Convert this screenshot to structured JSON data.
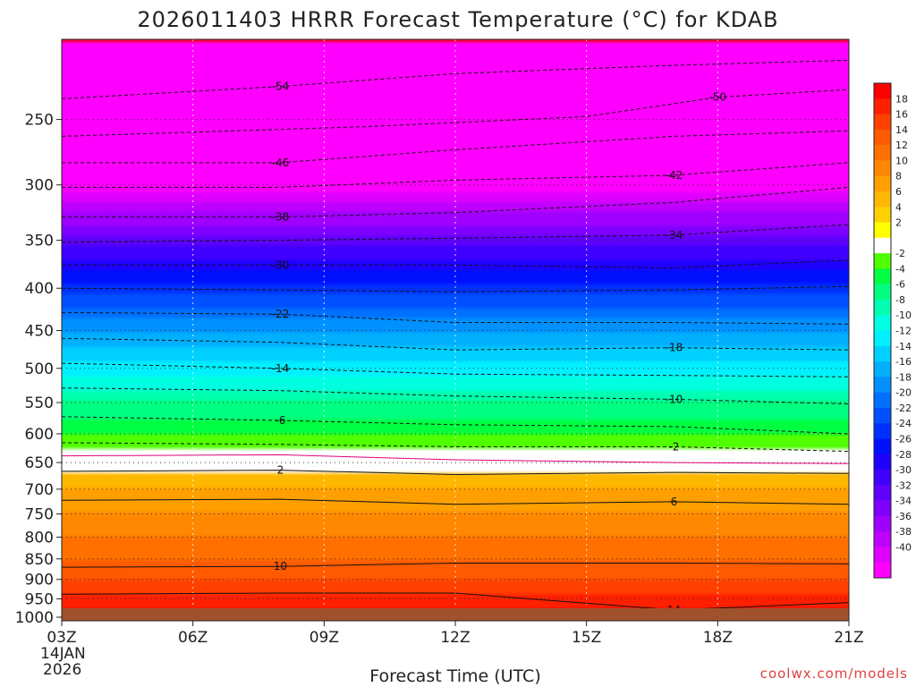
{
  "title": "2026011403 HRRR Forecast Temperature (°C) for KDAB",
  "credit": "coolwx.com/models",
  "chart_data": {
    "type": "heatmap",
    "title": "2026011403 HRRR Forecast Temperature (°C) for KDAB",
    "xlabel": "Forecast Time (UTC)",
    "x_ticks": [
      "03Z",
      "06Z",
      "09Z",
      "12Z",
      "15Z",
      "18Z",
      "21Z"
    ],
    "x_tick_hours": [
      3,
      6,
      9,
      12,
      15,
      18,
      21
    ],
    "x_date_line1": "14JAN",
    "x_date_line2": "2026",
    "y_ticks": [
      250,
      300,
      350,
      400,
      450,
      500,
      550,
      600,
      650,
      700,
      750,
      800,
      850,
      900,
      950,
      1000
    ],
    "y_range": [
      200,
      1010
    ],
    "x_range": [
      3,
      21
    ],
    "y_scale": "log-pressure",
    "grid": true,
    "surface_color": "#a0522d",
    "temperature_profile": {
      "pressure": [
        200,
        250,
        300,
        350,
        400,
        450,
        500,
        550,
        600,
        640,
        650,
        700,
        750,
        800,
        850,
        900,
        950,
        1000
      ],
      "temperature": [
        -56,
        -54,
        -43,
        -33,
        -25,
        -18,
        -13,
        -8,
        -4,
        -1,
        1,
        4,
        6,
        8,
        10,
        12,
        15,
        17
      ]
    },
    "colorbar": {
      "labels": [
        "18",
        "16",
        "14",
        "12",
        "10",
        "8",
        "6",
        "4",
        "2",
        "-2",
        "-4",
        "-6",
        "-8",
        "-10",
        "-12",
        "-14",
        "-16",
        "-18",
        "-20",
        "-22",
        "-24",
        "-26",
        "-28",
        "-30",
        "-32",
        "-34",
        "-36",
        "-38",
        "-40"
      ],
      "colors": [
        "#ff0000",
        "#ff2000",
        "#ff4000",
        "#ff5a00",
        "#ff7000",
        "#ff8800",
        "#ffa000",
        "#ffb800",
        "#ffd000",
        "#ffff00",
        "#ffffff",
        "#50ff00",
        "#00ff40",
        "#00ff80",
        "#00ffb0",
        "#00ffe0",
        "#00f0ff",
        "#00d0ff",
        "#00b0ff",
        "#0090ff",
        "#0070ff",
        "#0050ff",
        "#0030ff",
        "#0010ff",
        "#2000ff",
        "#4000ff",
        "#6000ff",
        "#8000ff",
        "#a000ff",
        "#c000ff",
        "#e000ff",
        "#ff00ff"
      ]
    },
    "contours": [
      {
        "value": -54,
        "label": "-54",
        "points": [
          [
            3,
            236
          ],
          [
            8,
            228
          ],
          [
            12,
            220
          ],
          [
            17,
            215
          ],
          [
            21,
            212
          ]
        ]
      },
      {
        "value": -50,
        "label": "-50",
        "points": [
          [
            3,
            262
          ],
          [
            10,
            255
          ],
          [
            15,
            248
          ],
          [
            18,
            235
          ],
          [
            21,
            230
          ]
        ]
      },
      {
        "value": -46,
        "label": "-46",
        "points": [
          [
            3,
            282
          ],
          [
            8,
            282
          ],
          [
            12,
            272
          ],
          [
            17,
            262
          ],
          [
            21,
            258
          ]
        ]
      },
      {
        "value": -42,
        "label": "-42",
        "points": [
          [
            3,
            302
          ],
          [
            8,
            302
          ],
          [
            12,
            296
          ],
          [
            17,
            292
          ],
          [
            21,
            282
          ]
        ]
      },
      {
        "value": -38,
        "label": "-38",
        "points": [
          [
            3,
            328
          ],
          [
            8,
            328
          ],
          [
            12,
            324
          ],
          [
            17,
            315
          ],
          [
            21,
            302
          ]
        ]
      },
      {
        "value": -34,
        "label": "-34",
        "points": [
          [
            3,
            352
          ],
          [
            8,
            350
          ],
          [
            12,
            348
          ],
          [
            17,
            345
          ],
          [
            21,
            335
          ]
        ]
      },
      {
        "value": -30,
        "label": "-30",
        "points": [
          [
            3,
            375
          ],
          [
            8,
            375
          ],
          [
            12,
            375
          ],
          [
            17,
            378
          ],
          [
            21,
            370
          ]
        ]
      },
      {
        "value": -26,
        "label": "",
        "points": [
          [
            3,
            400
          ],
          [
            8,
            402
          ],
          [
            12,
            404
          ],
          [
            17,
            402
          ],
          [
            21,
            398
          ]
        ]
      },
      {
        "value": -22,
        "label": "-22",
        "points": [
          [
            3,
            428
          ],
          [
            8,
            430
          ],
          [
            12,
            440
          ],
          [
            17,
            440
          ],
          [
            21,
            442
          ]
        ]
      },
      {
        "value": -18,
        "label": "-18",
        "points": [
          [
            3,
            460
          ],
          [
            8,
            465
          ],
          [
            12,
            475
          ],
          [
            17,
            472
          ],
          [
            21,
            475
          ]
        ]
      },
      {
        "value": -14,
        "label": "-14",
        "points": [
          [
            3,
            493
          ],
          [
            8,
            500
          ],
          [
            12,
            508
          ],
          [
            17,
            510
          ],
          [
            21,
            512
          ]
        ]
      },
      {
        "value": -10,
        "label": "-10",
        "points": [
          [
            3,
            528
          ],
          [
            8,
            532
          ],
          [
            12,
            540
          ],
          [
            17,
            545
          ],
          [
            21,
            552
          ]
        ]
      },
      {
        "value": -6,
        "label": "-6",
        "points": [
          [
            3,
            572
          ],
          [
            8,
            578
          ],
          [
            12,
            585
          ],
          [
            17,
            588
          ],
          [
            21,
            600
          ]
        ]
      },
      {
        "value": -2,
        "label": "-2",
        "points": [
          [
            3,
            615
          ],
          [
            8,
            618
          ],
          [
            12,
            622
          ],
          [
            17,
            622
          ],
          [
            21,
            630
          ]
        ]
      },
      {
        "value": 2,
        "label": "2",
        "points": [
          [
            3,
            666
          ],
          [
            8,
            664
          ],
          [
            12,
            672
          ],
          [
            17,
            668
          ],
          [
            21,
            670
          ]
        ]
      },
      {
        "value": 6,
        "label": "6",
        "points": [
          [
            3,
            722
          ],
          [
            8,
            720
          ],
          [
            12,
            730
          ],
          [
            17,
            725
          ],
          [
            21,
            730
          ]
        ]
      },
      {
        "value": 10,
        "label": "10",
        "points": [
          [
            3,
            870
          ],
          [
            8,
            868
          ],
          [
            12,
            860
          ],
          [
            17,
            860
          ],
          [
            21,
            862
          ]
        ]
      },
      {
        "value": 14,
        "label": "14",
        "points": [
          [
            3,
            938
          ],
          [
            8,
            935
          ],
          [
            12,
            935
          ],
          [
            17,
            980
          ],
          [
            21,
            960
          ]
        ]
      }
    ],
    "freezing_line": {
      "value": 0,
      "points": [
        [
          3,
          638
        ],
        [
          8,
          636
        ],
        [
          12,
          645
        ],
        [
          17,
          650
        ],
        [
          21,
          652
        ]
      ]
    }
  }
}
